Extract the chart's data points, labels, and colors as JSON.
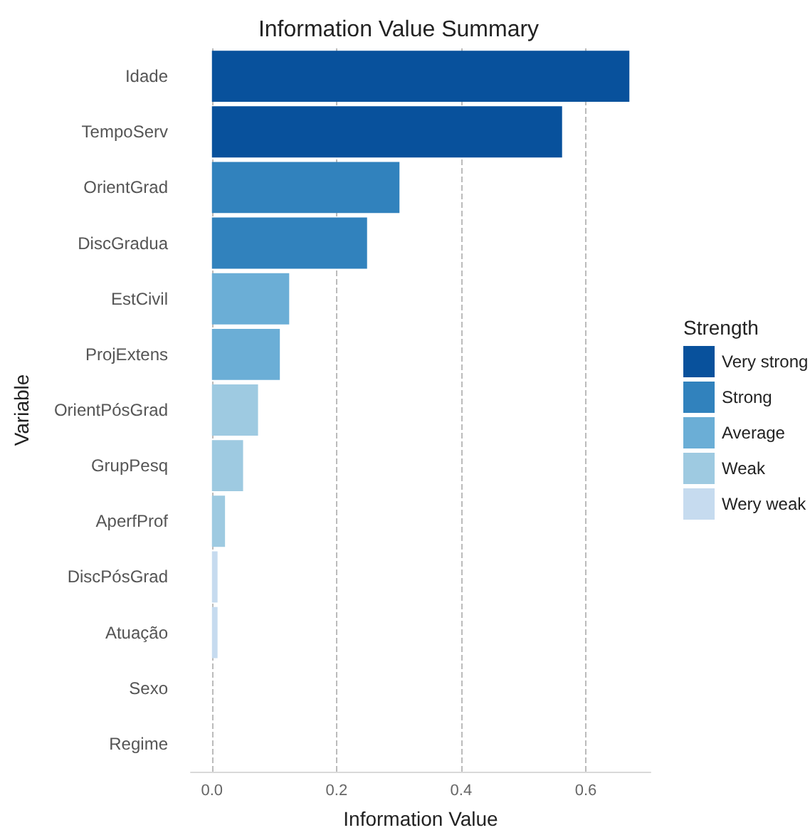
{
  "chart_data": {
    "type": "bar",
    "orientation": "horizontal",
    "title": "Information Value Summary",
    "xlabel": "Information Value",
    "ylabel": "Variable",
    "legend_title": "Strength",
    "categories": [
      "Idade",
      "TempoServ",
      "OrientGrad",
      "DiscGradua",
      "EstCivil",
      "ProjExtens",
      "OrientPósGrad",
      "GrupPesq",
      "AperfProf",
      "DiscPósGrad",
      "Atuação",
      "Sexo",
      "Regime"
    ],
    "series": [
      {
        "name": "Very strong",
        "color": "#08519c",
        "values": [
          0.67,
          0.562,
          null,
          null,
          null,
          null,
          null,
          null,
          null,
          null,
          null,
          null,
          null
        ]
      },
      {
        "name": "Strong",
        "color": "#3182bd",
        "values": [
          null,
          null,
          0.301,
          0.249,
          null,
          null,
          null,
          null,
          null,
          null,
          null,
          null,
          null
        ]
      },
      {
        "name": "Average",
        "color": "#6baed6",
        "values": [
          null,
          null,
          null,
          null,
          0.124,
          0.109,
          null,
          null,
          null,
          null,
          null,
          null,
          null
        ]
      },
      {
        "name": "Weak",
        "color": "#9ecae1",
        "values": [
          null,
          null,
          null,
          null,
          null,
          null,
          0.074,
          0.05,
          0.021,
          null,
          null,
          null,
          null
        ]
      },
      {
        "name": "Wery weak",
        "color": "#c6dbef",
        "values": [
          null,
          null,
          null,
          null,
          null,
          null,
          null,
          null,
          null,
          0.009,
          0.009,
          0,
          0
        ]
      }
    ],
    "xlim": [
      -0.034,
      0.704
    ],
    "xticks": [
      {
        "value": 0,
        "label": "0.0"
      },
      {
        "value": 0.2,
        "label": "0.2"
      },
      {
        "value": 0.4,
        "label": "0.4"
      },
      {
        "value": 0.6,
        "label": "0.6"
      }
    ],
    "grid": "x",
    "legend": "right"
  }
}
